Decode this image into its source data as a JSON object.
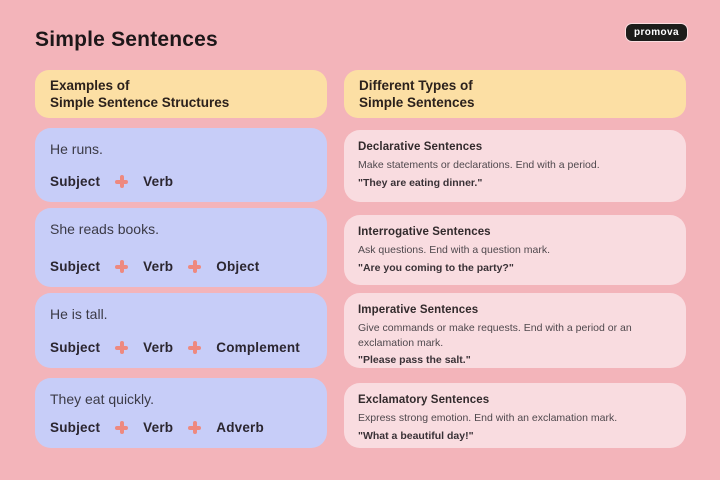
{
  "page": {
    "title": "Simple Sentences",
    "logo": "promova"
  },
  "colors": {
    "background": "#f3b4ba",
    "header_bg": "#fcdfa4",
    "example_card_bg": "#c7cdf8",
    "type_card_bg": "#f9dce0",
    "plus_color": "#ee897f",
    "logo_bg": "#1d1d1b"
  },
  "examples": {
    "header_line1": "Examples of",
    "header_line2": "Simple Sentence Structures",
    "cards": [
      {
        "sentence": "He runs.",
        "parts": [
          "Subject",
          "Verb"
        ]
      },
      {
        "sentence": "She reads books.",
        "parts": [
          "Subject",
          "Verb",
          "Object"
        ]
      },
      {
        "sentence": "He is tall.",
        "parts": [
          "Subject",
          "Verb",
          "Complement"
        ]
      },
      {
        "sentence": "They eat quickly.",
        "parts": [
          "Subject",
          "Verb",
          "Adverb"
        ]
      }
    ]
  },
  "types": {
    "header_line1": "Different Types of",
    "header_line2": "Simple Sentences",
    "cards": [
      {
        "title": "Declarative Sentences",
        "description": "Make statements or declarations. End with a period.",
        "example": "\"They are eating dinner.\""
      },
      {
        "title": "Interrogative Sentences",
        "description": "Ask questions. End with a question mark.",
        "example": "\"Are you coming to the party?\""
      },
      {
        "title": "Imperative Sentences",
        "description": "Give commands or make requests. End with a period or an exclamation mark.",
        "example": "\"Please pass the salt.\""
      },
      {
        "title": "Exclamatory Sentences",
        "description": "Express strong emotion. End with an exclamation mark.",
        "example": "\"What a beautiful day!\""
      }
    ]
  }
}
